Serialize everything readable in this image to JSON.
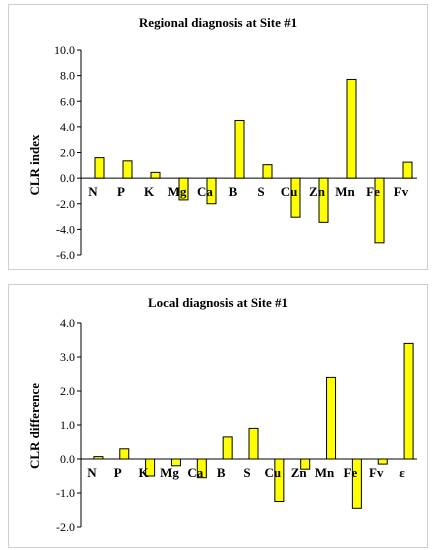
{
  "chart_data": [
    {
      "type": "bar",
      "title": "Regional diagnosis at Site #1",
      "xlabel": "",
      "ylabel": "CLR index",
      "categories": [
        "N",
        "P",
        "K",
        "Mg",
        "Ca",
        "B",
        "S",
        "Cu",
        "Zn",
        "Mn",
        "Fe",
        "Fv"
      ],
      "values": [
        1.6,
        1.35,
        0.45,
        -1.7,
        -2.0,
        4.5,
        1.05,
        -3.05,
        -3.45,
        7.7,
        -5.05,
        1.25
      ],
      "ylim": [
        -6.0,
        10.0
      ],
      "yticks": [
        "10.0",
        "8.0",
        "6.0",
        "4.0",
        "2.0",
        "0.0",
        "-2.0",
        "-4.0",
        "-6.0"
      ],
      "bar_color": "#ffff00",
      "grid": false,
      "legend": "none"
    },
    {
      "type": "bar",
      "title": "Local diagnosis at Site #1",
      "xlabel": "",
      "ylabel": "CLR difference",
      "categories": [
        "N",
        "P",
        "K",
        "Mg",
        "Ca",
        "B",
        "S",
        "Cu",
        "Zn",
        "Mn",
        "Fe",
        "Fv",
        "ε"
      ],
      "values": [
        0.07,
        0.3,
        -0.5,
        -0.2,
        -0.55,
        0.65,
        0.9,
        -1.25,
        -0.3,
        2.4,
        -1.45,
        -0.15,
        3.4
      ],
      "ylim": [
        -2.0,
        4.0
      ],
      "yticks": [
        "4.0",
        "3.0",
        "2.0",
        "1.0",
        "0.0",
        "-1.0",
        "-2.0"
      ],
      "bar_color": "#ffff00",
      "grid": false,
      "legend": "none"
    }
  ]
}
